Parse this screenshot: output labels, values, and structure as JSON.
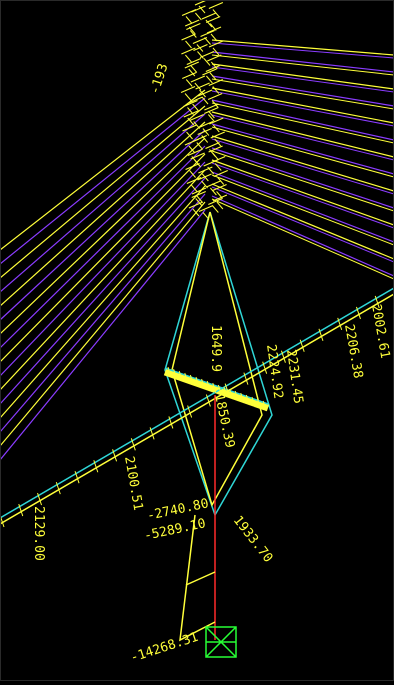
{
  "colors": {
    "background": "#000000",
    "cable_purple": "#8a3cff",
    "cable_yellow": "#ffff3a",
    "tower_cyan": "#2fd6d6",
    "deck_cyan": "#2fd6d6",
    "pier_red": "#ff2a2a",
    "support_green": "#27ff35",
    "label_yellow": "#ffff3a"
  },
  "labels": {
    "cable_top": "-193",
    "tower_left": "1649.9",
    "tower_mid": "1850.39",
    "tower_right_a": "2231.45",
    "tower_right_b": "2224.92",
    "deck_right_a": "2002.61",
    "deck_right_b": "2206.38",
    "deck_left_a": "2100.51",
    "deck_left_b": "2129.00",
    "pier_a": "-2740.80",
    "pier_b": "-5289.10",
    "pier_c": "1933.70",
    "base": "-14268.31"
  },
  "icons": {
    "support": "fixed-support-icon"
  }
}
